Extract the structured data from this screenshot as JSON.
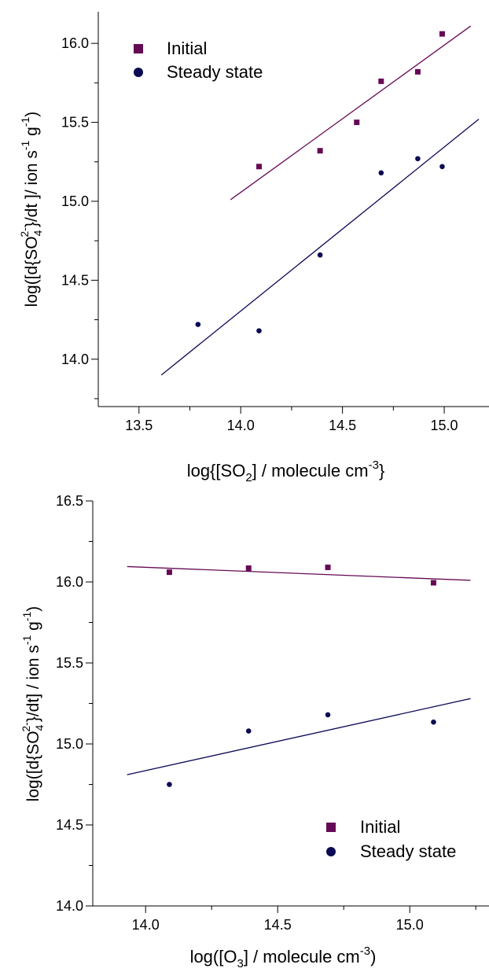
{
  "colors": {
    "initial": "#660a55",
    "steady": "#0a0a55",
    "axis": "#000000",
    "background": "#ffffff"
  },
  "chart_data": [
    {
      "type": "scatter",
      "title": "",
      "xlabel": {
        "pre": "log{[SO",
        "sub": "2",
        "mid": "] / molecule cm",
        "sup": "-3",
        "post": "}"
      },
      "ylabel": {
        "a": "log([d{SO",
        "sub": "4",
        "sup": "2-",
        "b": "}/dt ]/ ion s",
        "sup2": "-1",
        "c": " g",
        "sup3": "-1",
        "d": ")"
      },
      "xlim": [
        13.3,
        15.22
      ],
      "ylim": [
        13.7,
        16.2
      ],
      "xticks": [
        13.5,
        14.0,
        14.5,
        15.0
      ],
      "xtick_labels": [
        "13.5",
        "14.0",
        "14.5",
        "15.0"
      ],
      "yticks": [
        14.0,
        14.5,
        15.0,
        15.5,
        16.0
      ],
      "ytick_labels": [
        "14.0",
        "14.5",
        "15.0",
        "15.5",
        "16.0"
      ],
      "legend": {
        "position": "top-left",
        "entries": [
          {
            "label": "Initial",
            "marker": "square"
          },
          {
            "label": "Steady state",
            "marker": "circle"
          }
        ]
      },
      "series": [
        {
          "name": "Initial",
          "marker": "square",
          "x": [
            14.09,
            14.39,
            14.57,
            14.69,
            14.87,
            14.99
          ],
          "y": [
            15.22,
            15.32,
            15.5,
            15.76,
            15.82,
            16.06
          ],
          "fit": {
            "x": [
              13.95,
              15.13
            ],
            "y": [
              15.01,
              16.11
            ]
          }
        },
        {
          "name": "Steady state",
          "marker": "circle",
          "x": [
            13.79,
            14.09,
            14.39,
            14.69,
            14.87,
            14.99
          ],
          "y": [
            14.22,
            14.18,
            14.66,
            15.18,
            15.27,
            15.22
          ],
          "fit": {
            "x": [
              13.61,
              15.17
            ],
            "y": [
              13.9,
              15.52
            ]
          }
        }
      ]
    },
    {
      "type": "scatter",
      "title": "",
      "xlabel": {
        "pre": "log([O",
        "sub": "3",
        "mid": "] / molecule cm",
        "sup": "-3",
        "post": ")"
      },
      "ylabel": {
        "a": "log([d{SO",
        "sub": "4",
        "sup": "2-",
        "b": "}/dt] / ion s",
        "sup2": "-1",
        "c": " g",
        "sup3": "-1",
        "d": ")"
      },
      "xlim": [
        13.8,
        15.3
      ],
      "ylim": [
        14.0,
        16.5
      ],
      "xticks": [
        14.0,
        14.5,
        15.0
      ],
      "xtick_labels": [
        "14.0",
        "14.5",
        "15.0"
      ],
      "yticks": [
        14.0,
        14.5,
        15.0,
        15.5,
        16.0,
        16.5
      ],
      "ytick_labels": [
        "14.0",
        "14.5",
        "15.0",
        "15.5",
        "16.0",
        "16.5"
      ],
      "legend": {
        "position": "bottom-right",
        "entries": [
          {
            "label": "Initial",
            "marker": "square"
          },
          {
            "label": "Steady state",
            "marker": "circle"
          }
        ]
      },
      "series": [
        {
          "name": "Initial",
          "marker": "square",
          "x": [
            14.09,
            14.39,
            14.69,
            15.09
          ],
          "y": [
            16.06,
            16.085,
            16.09,
            15.995
          ],
          "fit": {
            "x": [
              13.93,
              15.23
            ],
            "y": [
              16.095,
              16.01
            ]
          }
        },
        {
          "name": "Steady state",
          "marker": "circle",
          "x": [
            14.09,
            14.39,
            14.69,
            15.09
          ],
          "y": [
            14.75,
            15.08,
            15.18,
            15.135
          ],
          "fit": {
            "x": [
              13.93,
              15.23
            ],
            "y": [
              14.81,
              15.28
            ]
          }
        }
      ]
    }
  ]
}
